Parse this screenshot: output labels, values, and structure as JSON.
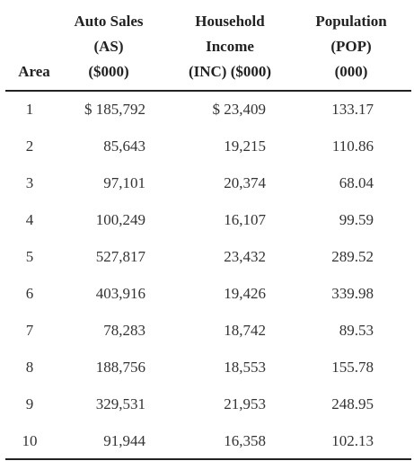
{
  "headers": {
    "area": [
      "Area"
    ],
    "as": [
      "Auto Sales",
      "(AS)",
      "($000)"
    ],
    "inc": [
      "Household",
      "Income",
      "(INC) ($000)"
    ],
    "pop": [
      "Population",
      "(POP)",
      "(000)"
    ]
  },
  "rows": [
    {
      "area": "1",
      "as": "$ 185,792",
      "inc": "$ 23,409",
      "pop": "133.17"
    },
    {
      "area": "2",
      "as": "85,643",
      "inc": "19,215",
      "pop": "110.86"
    },
    {
      "area": "3",
      "as": "97,101",
      "inc": "20,374",
      "pop": "68.04"
    },
    {
      "area": "4",
      "as": "100,249",
      "inc": "16,107",
      "pop": "99.59"
    },
    {
      "area": "5",
      "as": "527,817",
      "inc": "23,432",
      "pop": "289.52"
    },
    {
      "area": "6",
      "as": "403,916",
      "inc": "19,426",
      "pop": "339.98"
    },
    {
      "area": "7",
      "as": "78,283",
      "inc": "18,742",
      "pop": "89.53"
    },
    {
      "area": "8",
      "as": "188,756",
      "inc": "18,553",
      "pop": "155.78"
    },
    {
      "area": "9",
      "as": "329,531",
      "inc": "21,953",
      "pop": "248.95"
    },
    {
      "area": "10",
      "as": "91,944",
      "inc": "16,358",
      "pop": "102.13"
    }
  ]
}
